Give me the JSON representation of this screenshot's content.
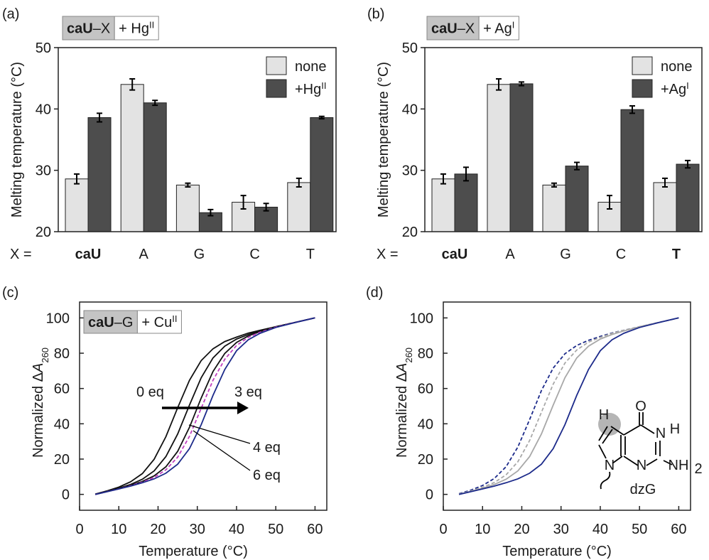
{
  "chart_data": [
    {
      "type": "bar",
      "panel_label": "(a)",
      "label_box": {
        "bold": "caU",
        "rest": "–X",
        "additive": "+ Hg",
        "additive_sup": "II"
      },
      "ylabel": "Melting temperature (°C)",
      "x_prefix": "X =",
      "categories": [
        "caU",
        "A",
        "G",
        "C",
        "T"
      ],
      "bold_categories": [
        "caU"
      ],
      "series": [
        {
          "name": "none",
          "color": "#e3e3e3",
          "values": [
            28.6,
            44,
            27.6,
            24.8,
            28
          ],
          "errors": [
            0.8,
            0.9,
            0.3,
            1.1,
            0.7
          ]
        },
        {
          "name": "+Hg",
          "name_sup": "II",
          "color": "#4d4d4d",
          "values": [
            38.6,
            41,
            23.1,
            24,
            38.6
          ],
          "errors": [
            0.7,
            0.4,
            0.5,
            0.6,
            0.2
          ]
        }
      ],
      "ylim": [
        20,
        50
      ],
      "yticks": [
        20,
        30,
        40,
        50
      ],
      "legend": "top-right"
    },
    {
      "type": "bar",
      "panel_label": "(b)",
      "label_box": {
        "bold": "caU",
        "rest": "–X",
        "additive": "+ Ag",
        "additive_sup": "I"
      },
      "ylabel": "Melting temperature (°C)",
      "x_prefix": "X =",
      "categories": [
        "caU",
        "A",
        "G",
        "C",
        "T"
      ],
      "bold_categories": [
        "caU",
        "T"
      ],
      "series": [
        {
          "name": "none",
          "color": "#e3e3e3",
          "values": [
            28.6,
            44,
            27.6,
            24.8,
            28
          ],
          "errors": [
            0.8,
            0.9,
            0.3,
            1.1,
            0.7
          ]
        },
        {
          "name": "+Ag",
          "name_sup": "I",
          "color": "#4d4d4d",
          "values": [
            29.4,
            44.1,
            30.7,
            39.9,
            31
          ],
          "errors": [
            1.1,
            0.3,
            0.6,
            0.6,
            0.6
          ]
        }
      ],
      "ylim": [
        20,
        50
      ],
      "yticks": [
        20,
        30,
        40,
        50
      ],
      "legend": "top-right"
    },
    {
      "type": "line",
      "panel_label": "(c)",
      "label_box": {
        "bold": "caU",
        "rest": "–G",
        "additive": "+ Cu",
        "additive_sup": "II"
      },
      "xlabel": "Temperature (°C)",
      "ylabel": {
        "text": "Normalized Δ",
        "italic": "A",
        "sub": "260"
      },
      "x": [
        4,
        7,
        10,
        13,
        16,
        19,
        22,
        25,
        28,
        31,
        34,
        37,
        40,
        43,
        46,
        50,
        55,
        60
      ],
      "series": [
        {
          "color": "#111111",
          "dash": false,
          "values": [
            0.2,
            2.0,
            4.1,
            7.1,
            11.8,
            19.9,
            32.7,
            49.1,
            64.6,
            75.8,
            82.5,
            86.6,
            89.1,
            91.4,
            93,
            95,
            97.5,
            100
          ]
        },
        {
          "color": "#111111",
          "dash": false,
          "values": [
            0.1,
            1.7,
            3.5,
            5.6,
            8.6,
            13.3,
            21.4,
            34.2,
            50.6,
            66.1,
            77.3,
            84,
            88,
            90.6,
            92.6,
            95,
            97.5,
            100
          ]
        },
        {
          "color": "#111111",
          "dash": false,
          "values": [
            0,
            1.6,
            3.2,
            5.1,
            7.3,
            10.5,
            15.6,
            24.4,
            38,
            54.6,
            69.6,
            79.9,
            86.1,
            89.8,
            92.2,
            94.9,
            97.5,
            100
          ]
        },
        {
          "color": "#c040c0",
          "dash": true,
          "values": [
            0,
            1.6,
            3.1,
            4.9,
            6.9,
            9.6,
            13.9,
            21.1,
            32.9,
            48.8,
            64.6,
            76.6,
            84.4,
            89,
            91.9,
            94.8,
            97.5,
            100
          ]
        },
        {
          "color": "#1c2a8a",
          "dash": false,
          "values": [
            0,
            1.5,
            3.1,
            4.7,
            6.6,
            8.8,
            12,
            17.1,
            25.9,
            39.5,
            56.1,
            70.8,
            81.4,
            87.6,
            91.3,
            94.6,
            97.4,
            100
          ]
        }
      ],
      "annotations": [
        "0 eq",
        "3 eq",
        "4 eq",
        "6 eq"
      ],
      "xlim": [
        0,
        63
      ],
      "ylim": [
        -9,
        109
      ],
      "xticks": [
        0,
        10,
        20,
        30,
        40,
        50,
        60
      ],
      "yticks": [
        0,
        20,
        40,
        60,
        80,
        100
      ]
    },
    {
      "type": "line",
      "panel_label": "(d)",
      "xlabel": "Temperature (°C)",
      "ylabel": {
        "text": "Normalized Δ",
        "italic": "A",
        "sub": "260"
      },
      "x": [
        4,
        7,
        10,
        13,
        16,
        19,
        22,
        25,
        28,
        31,
        34,
        37,
        40,
        43,
        46,
        50,
        55,
        60
      ],
      "series": [
        {
          "color": "#1c2a8a",
          "dash": true,
          "values": [
            0.4,
            2.4,
            5,
            9,
            15.7,
            26.9,
            42.4,
            58.8,
            71.6,
            79.7,
            84.4,
            87.3,
            89.5,
            91.5,
            93,
            95,
            97.5,
            100
          ]
        },
        {
          "color": "#a8a8a8",
          "dash": true,
          "values": [
            0.2,
            1.9,
            4,
            6.7,
            11.1,
            18.5,
            30.5,
            46.5,
            62.5,
            74.4,
            81.8,
            86.3,
            89,
            91.3,
            93,
            95,
            97.5,
            100
          ]
        },
        {
          "color": "#a8a8a8",
          "dash": false,
          "values": [
            0.1,
            1.7,
            3.5,
            5.6,
            8.6,
            13.3,
            21.4,
            34.2,
            50.6,
            66.1,
            77.3,
            84,
            88,
            90.6,
            92.6,
            95,
            97.5,
            100
          ]
        },
        {
          "color": "#1c2a8a",
          "dash": false,
          "values": [
            0,
            1.5,
            3.1,
            4.7,
            6.6,
            8.8,
            12,
            17.1,
            25.9,
            39.5,
            56.1,
            70.8,
            81.4,
            87.6,
            91.3,
            94.6,
            97.4,
            100
          ]
        }
      ],
      "structure": {
        "labels": [
          "O",
          "N",
          "H",
          "N",
          "NH",
          "2",
          "N",
          "H"
        ],
        "name": "dzG"
      },
      "xlim": [
        0,
        63
      ],
      "ylim": [
        -9,
        109
      ],
      "xticks": [
        0,
        10,
        20,
        30,
        40,
        50,
        60
      ],
      "yticks": [
        0,
        20,
        40,
        60,
        80,
        100
      ]
    }
  ]
}
